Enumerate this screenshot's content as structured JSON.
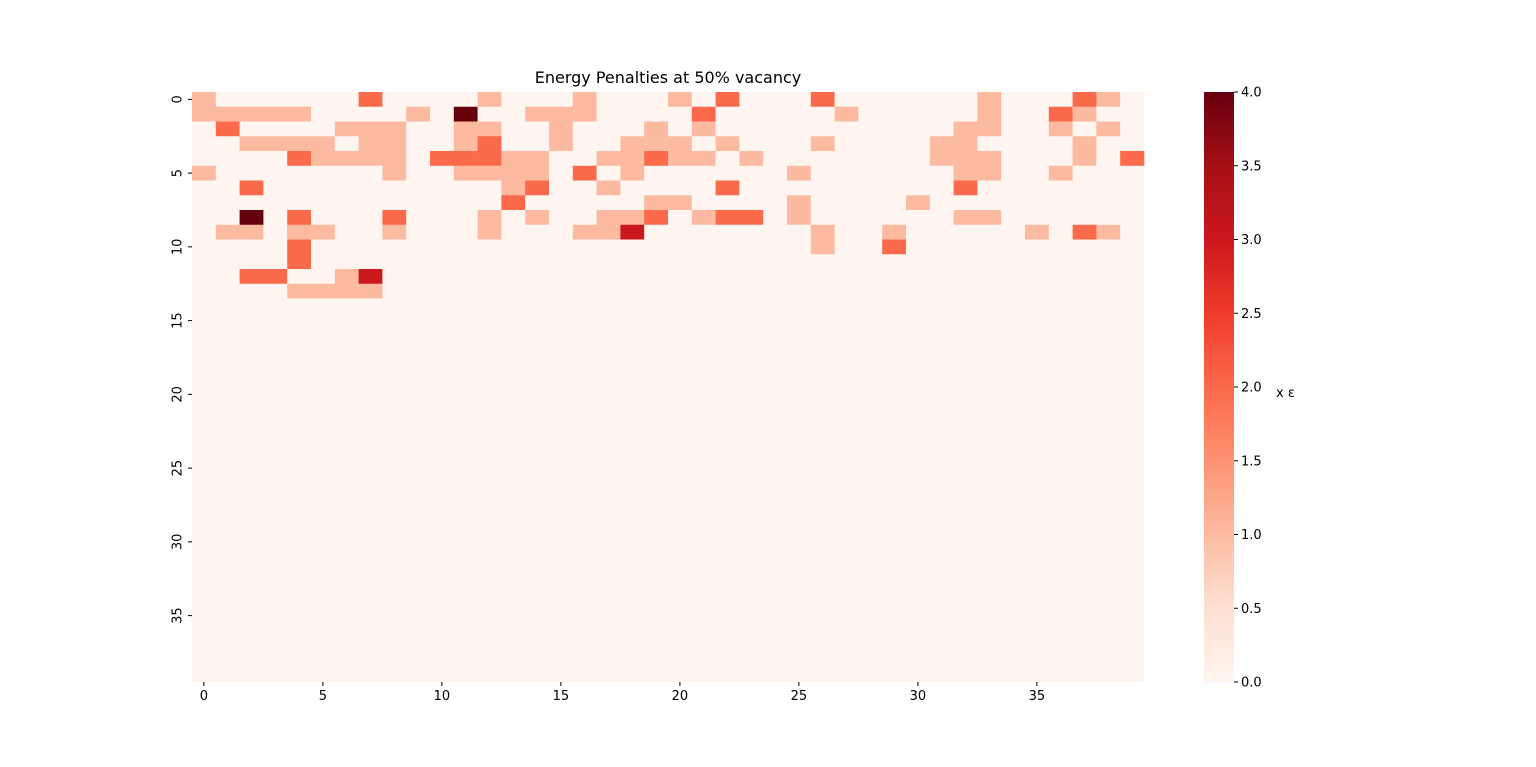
{
  "chart_data": {
    "type": "heatmap",
    "title": "Energy Penalties at 50% vacancy",
    "xlabel": "",
    "ylabel": "",
    "rows": 40,
    "cols": 40,
    "x_ticks": [
      0,
      5,
      10,
      15,
      20,
      25,
      30,
      35
    ],
    "y_ticks": [
      0,
      5,
      10,
      15,
      20,
      25,
      30,
      35
    ],
    "colormap": "Reds",
    "colormap_stops": [
      "#fff5f0",
      "#fee0d2",
      "#fcbba1",
      "#fc9272",
      "#fb6a4a",
      "#ef3b2c",
      "#cb181d",
      "#a50f15",
      "#67000d"
    ],
    "vmin": 0,
    "vmax": 4,
    "colorbar": {
      "label": "x ε",
      "ticks": [
        "0.0",
        "0.5",
        "1.0",
        "1.5",
        "2.0",
        "2.5",
        "3.0",
        "3.5",
        "4.0"
      ]
    },
    "values": [
      "1000000200001000100010200020000001000210",
      "1111100001040011100002000001000001002100",
      "0200001110011001000101000000000011001010",
      "0011110110012001001110100010000110000100",
      "0000211110222110011211010000000111000102",
      "1000000010011110201000000100000011001000",
      "0020000000000120010000200000000020000000",
      "0000000000000200000110000100001000000000",
      "0040200020001010011201220100000011000000",
      "0110110010001000113000000010010000010210",
      "0000200000000000000000000010020000000000",
      "0000200000000000000000000000000000000000",
      "0022001300000000000000000000000000000000",
      "0000111100000000000000000000000000000000",
      "0000000000000000000000000000000000000000",
      "0000000000000000000000000000000000000000",
      "0000000000000000000000000000000000000000",
      "0000000000000000000000000000000000000000",
      "0000000000000000000000000000000000000000",
      "0000000000000000000000000000000000000000",
      "0000000000000000000000000000000000000000",
      "0000000000000000000000000000000000000000",
      "0000000000000000000000000000000000000000",
      "0000000000000000000000000000000000000000",
      "0000000000000000000000000000000000000000",
      "0000000000000000000000000000000000000000",
      "0000000000000000000000000000000000000000",
      "0000000000000000000000000000000000000000",
      "0000000000000000000000000000000000000000",
      "0000000000000000000000000000000000000000",
      "0000000000000000000000000000000000000000",
      "0000000000000000000000000000000000000000",
      "0000000000000000000000000000000000000000",
      "0000000000000000000000000000000000000000",
      "0000000000000000000000000000000000000000",
      "0000000000000000000000000000000000000000",
      "0000000000000000000000000000000000000000",
      "0000000000000000000000000000000000000000",
      "0000000000000000000000000000000000000000",
      "0000000000000000000000000000000000000000"
    ]
  }
}
